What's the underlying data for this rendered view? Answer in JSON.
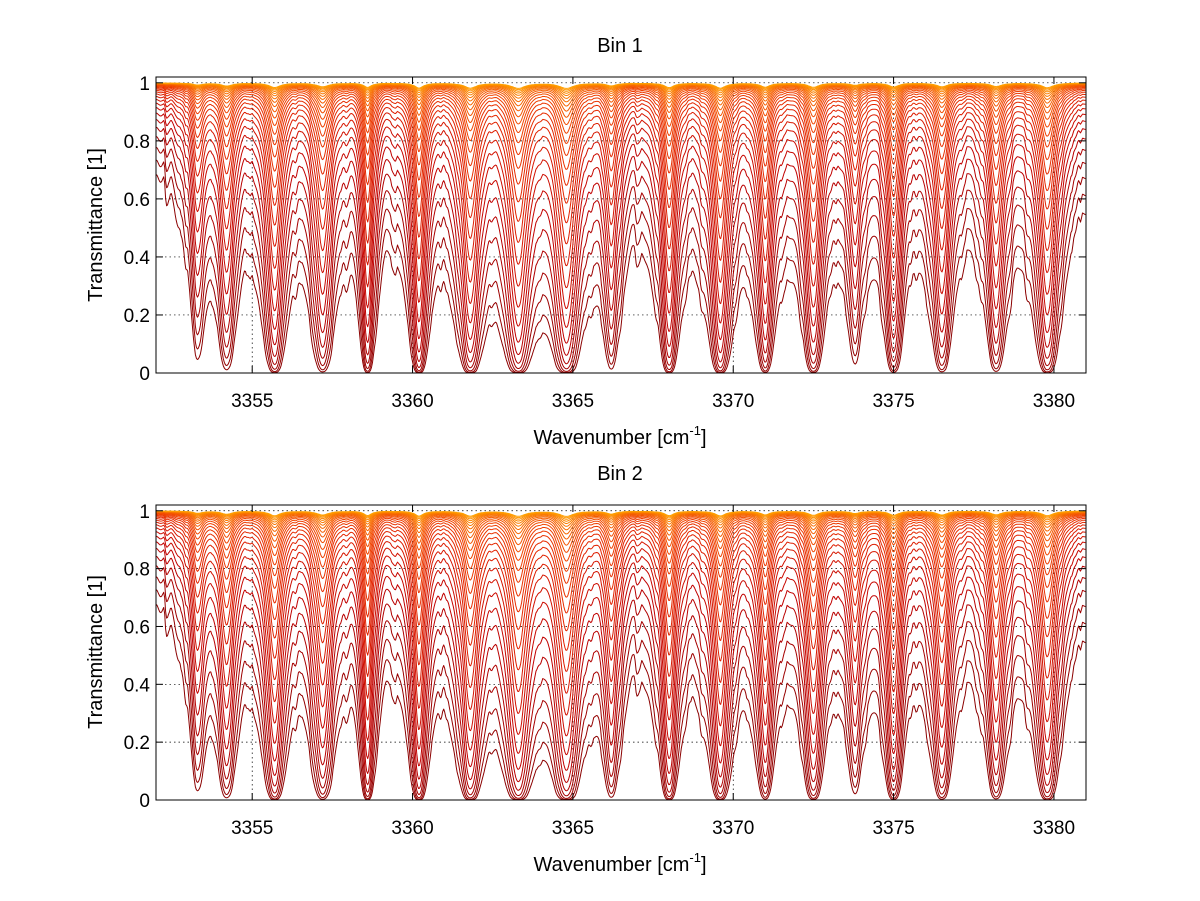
{
  "chart_data": [
    {
      "type": "line",
      "title": "Bin 1",
      "xlabel": "Wavenumber [cm",
      "xlabel_sup": "-1",
      "xlabel_end": "]",
      "ylabel": "Transmittance [1]",
      "xlim": [
        3352,
        3381
      ],
      "ylim": [
        0,
        1.02
      ],
      "xticks": [
        3355,
        3360,
        3365,
        3370,
        3375,
        3380
      ],
      "xtick_labels": [
        "3355",
        "3360",
        "3365",
        "3370",
        "3375",
        "3380"
      ],
      "yticks": [
        0,
        0.2,
        0.4,
        0.6,
        0.8,
        1
      ],
      "ytick_labels": [
        "0",
        "0.2",
        "0.4",
        "0.6",
        "0.8",
        "1"
      ],
      "grid": true,
      "n_series": 30,
      "colormap": [
        "#8b0000",
        "#c00000",
        "#e02000",
        "#f04000",
        "#f87000",
        "#ffa000"
      ],
      "absorption_lines": [
        {
          "x": 3353.3,
          "depth": 0.35,
          "width": 0.18
        },
        {
          "x": 3354.2,
          "depth": 0.55,
          "width": 0.2
        },
        {
          "x": 3355.7,
          "depth": 0.85,
          "width": 0.2
        },
        {
          "x": 3357.2,
          "depth": 0.7,
          "width": 0.22
        },
        {
          "x": 3358.6,
          "depth": 0.8,
          "width": 0.14
        },
        {
          "x": 3360.2,
          "depth": 0.95,
          "width": 0.16
        },
        {
          "x": 3361.8,
          "depth": 0.95,
          "width": 0.22
        },
        {
          "x": 3363.3,
          "depth": 0.98,
          "width": 0.26
        },
        {
          "x": 3364.8,
          "depth": 1.0,
          "width": 0.26
        },
        {
          "x": 3366.2,
          "depth": 0.5,
          "width": 0.18
        },
        {
          "x": 3368.0,
          "depth": 0.85,
          "width": 0.18
        },
        {
          "x": 3369.6,
          "depth": 0.95,
          "width": 0.2
        },
        {
          "x": 3371.0,
          "depth": 0.75,
          "width": 0.18
        },
        {
          "x": 3372.5,
          "depth": 0.8,
          "width": 0.2
        },
        {
          "x": 3373.8,
          "depth": 0.4,
          "width": 0.18
        },
        {
          "x": 3375.0,
          "depth": 0.75,
          "width": 0.18
        },
        {
          "x": 3376.5,
          "depth": 0.7,
          "width": 0.2
        },
        {
          "x": 3378.2,
          "depth": 0.65,
          "width": 0.2
        },
        {
          "x": 3379.8,
          "depth": 0.9,
          "width": 0.22
        }
      ]
    },
    {
      "type": "line",
      "title": "Bin 2",
      "xlabel": "Wavenumber [cm",
      "xlabel_sup": "-1",
      "xlabel_end": "]",
      "ylabel": "Transmittance [1]",
      "xlim": [
        3352,
        3381
      ],
      "ylim": [
        0,
        1.02
      ],
      "xticks": [
        3355,
        3360,
        3365,
        3370,
        3375,
        3380
      ],
      "xtick_labels": [
        "3355",
        "3360",
        "3365",
        "3370",
        "3375",
        "3380"
      ],
      "yticks": [
        0,
        0.2,
        0.4,
        0.6,
        0.8,
        1
      ],
      "ytick_labels": [
        "0",
        "0.2",
        "0.4",
        "0.6",
        "0.8",
        "1"
      ],
      "grid": true,
      "n_series": 30,
      "colormap": [
        "#8b0000",
        "#c00000",
        "#e02000",
        "#f04000",
        "#f87000",
        "#ffa000"
      ],
      "absorption_lines": [
        {
          "x": 3353.3,
          "depth": 0.4,
          "width": 0.18
        },
        {
          "x": 3354.2,
          "depth": 0.6,
          "width": 0.2
        },
        {
          "x": 3355.7,
          "depth": 0.9,
          "width": 0.2
        },
        {
          "x": 3357.2,
          "depth": 0.75,
          "width": 0.22
        },
        {
          "x": 3358.6,
          "depth": 0.85,
          "width": 0.14
        },
        {
          "x": 3360.2,
          "depth": 0.95,
          "width": 0.16
        },
        {
          "x": 3361.8,
          "depth": 0.95,
          "width": 0.22
        },
        {
          "x": 3363.3,
          "depth": 0.98,
          "width": 0.26
        },
        {
          "x": 3364.8,
          "depth": 1.0,
          "width": 0.26
        },
        {
          "x": 3366.2,
          "depth": 0.55,
          "width": 0.18
        },
        {
          "x": 3368.0,
          "depth": 0.85,
          "width": 0.18
        },
        {
          "x": 3369.6,
          "depth": 0.9,
          "width": 0.2
        },
        {
          "x": 3371.0,
          "depth": 0.7,
          "width": 0.18
        },
        {
          "x": 3372.5,
          "depth": 0.8,
          "width": 0.2
        },
        {
          "x": 3373.8,
          "depth": 0.45,
          "width": 0.18
        },
        {
          "x": 3375.0,
          "depth": 0.8,
          "width": 0.18
        },
        {
          "x": 3376.5,
          "depth": 0.75,
          "width": 0.2
        },
        {
          "x": 3378.2,
          "depth": 0.7,
          "width": 0.2
        },
        {
          "x": 3379.8,
          "depth": 0.9,
          "width": 0.22
        }
      ]
    }
  ]
}
